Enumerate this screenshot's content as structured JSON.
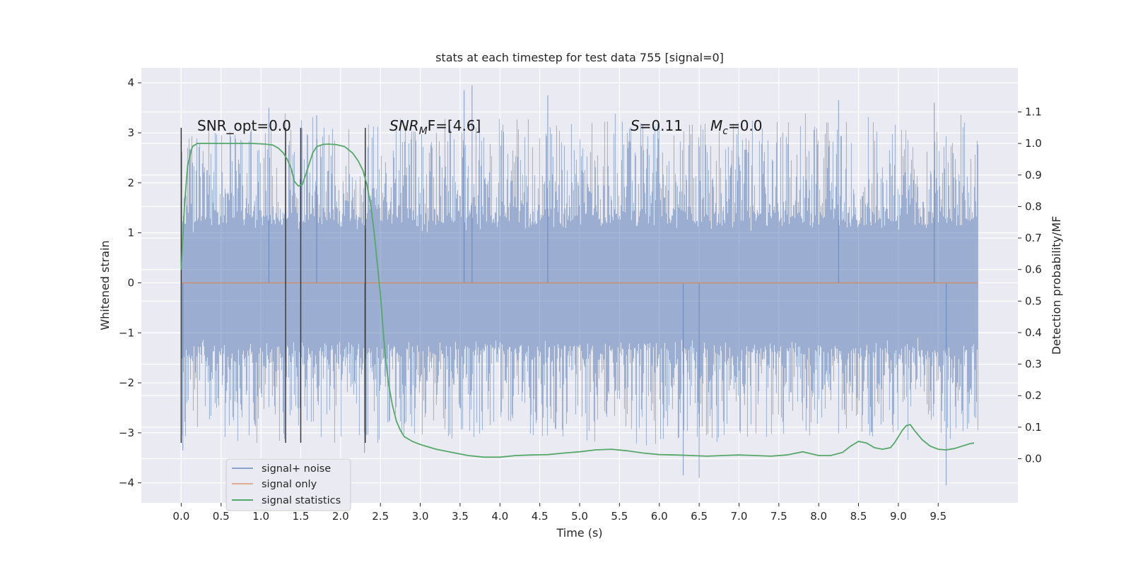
{
  "chart_data": {
    "type": "line",
    "title": "stats at each timestep for test data 755 [signal=0]",
    "xlabel": "Time (s)",
    "ylabel": "Whitened strain",
    "y2label": "Detection probability/MF",
    "xlim": [
      -0.5,
      10.5
    ],
    "ylim": [
      -4.4,
      4.3
    ],
    "y2lim": [
      -0.14,
      1.24
    ],
    "x_ticks": [
      "0.0",
      "0.5",
      "1.0",
      "1.5",
      "2.0",
      "2.5",
      "3.0",
      "3.5",
      "4.0",
      "4.5",
      "5.0",
      "5.5",
      "6.0",
      "6.5",
      "7.0",
      "7.5",
      "8.0",
      "8.5",
      "9.0",
      "9.5"
    ],
    "y_ticks": [
      "4",
      "3",
      "2",
      "1",
      "0",
      "−1",
      "−2",
      "−3",
      "−4"
    ],
    "y2_ticks": [
      "1.1",
      "1.0",
      "0.9",
      "0.8",
      "0.7",
      "0.6",
      "0.5",
      "0.4",
      "0.3",
      "0.2",
      "0.1",
      "0.0"
    ],
    "grid": true,
    "legend_position": "lower-left",
    "colors": {
      "background": "#eaeaf2",
      "grid": "#ffffff",
      "signal_noise": "#4c72b0",
      "signal_only": "#dd8452",
      "statistics": "#55a868",
      "vlines": "#3a3a3a"
    },
    "series": [
      {
        "name": "signal+ noise",
        "style": "dense noise band",
        "x_range": [
          0.0,
          10.0
        ],
        "band_envelope": [
          -1.3,
          1.2
        ],
        "notable_peaks": [
          {
            "x": 1.1,
            "y": 3.5
          },
          {
            "x": 1.7,
            "y": 3.35
          },
          {
            "x": 3.55,
            "y": 3.85
          },
          {
            "x": 3.65,
            "y": 3.95
          },
          {
            "x": 4.6,
            "y": 3.75
          },
          {
            "x": 8.25,
            "y": 3.65
          },
          {
            "x": 9.45,
            "y": 3.6
          },
          {
            "x": 0.02,
            "y": -3.35
          },
          {
            "x": 2.3,
            "y": -3.4
          },
          {
            "x": 6.3,
            "y": -3.85
          },
          {
            "x": 6.5,
            "y": -3.9
          },
          {
            "x": 9.6,
            "y": -4.05
          }
        ]
      },
      {
        "name": "signal only",
        "x": [
          0.0,
          10.0
        ],
        "y": [
          0.0,
          0.0
        ]
      },
      {
        "name": "signal statistics",
        "axis": "right",
        "x": [
          0.0,
          0.04,
          0.08,
          0.14,
          0.2,
          0.3,
          0.5,
          0.7,
          0.9,
          1.05,
          1.15,
          1.22,
          1.28,
          1.33,
          1.38,
          1.42,
          1.47,
          1.52,
          1.56,
          1.6,
          1.65,
          1.7,
          1.78,
          1.85,
          1.95,
          2.05,
          2.15,
          2.22,
          2.28,
          2.33,
          2.38,
          2.42,
          2.46,
          2.5,
          2.53,
          2.56,
          2.6,
          2.65,
          2.7,
          2.75,
          2.8,
          2.9,
          3.0,
          3.2,
          3.4,
          3.6,
          3.8,
          4.0,
          4.2,
          4.4,
          4.6,
          4.8,
          5.0,
          5.2,
          5.4,
          5.6,
          5.8,
          6.0,
          6.2,
          6.4,
          6.6,
          6.8,
          7.0,
          7.2,
          7.4,
          7.6,
          7.8,
          8.0,
          8.15,
          8.3,
          8.4,
          8.5,
          8.6,
          8.7,
          8.8,
          8.9,
          8.95,
          9.0,
          9.05,
          9.1,
          9.15,
          9.2,
          9.3,
          9.4,
          9.5,
          9.6,
          9.7,
          9.8,
          9.9,
          9.95
        ],
        "y": [
          0.6,
          0.8,
          0.93,
          0.99,
          1.0,
          1.0,
          1.0,
          1.0,
          1.0,
          0.998,
          0.995,
          0.985,
          0.97,
          0.95,
          0.92,
          0.88,
          0.865,
          0.87,
          0.9,
          0.93,
          0.97,
          0.99,
          0.997,
          0.998,
          0.996,
          0.99,
          0.97,
          0.945,
          0.915,
          0.87,
          0.8,
          0.72,
          0.62,
          0.52,
          0.42,
          0.33,
          0.24,
          0.17,
          0.12,
          0.09,
          0.07,
          0.055,
          0.045,
          0.03,
          0.02,
          0.01,
          0.005,
          0.005,
          0.01,
          0.012,
          0.013,
          0.018,
          0.022,
          0.028,
          0.03,
          0.025,
          0.018,
          0.013,
          0.012,
          0.01,
          0.008,
          0.01,
          0.012,
          0.01,
          0.008,
          0.012,
          0.022,
          0.01,
          0.01,
          0.02,
          0.04,
          0.055,
          0.05,
          0.035,
          0.03,
          0.035,
          0.05,
          0.07,
          0.09,
          0.105,
          0.108,
          0.09,
          0.06,
          0.04,
          0.03,
          0.028,
          0.032,
          0.04,
          0.048,
          0.05
        ]
      }
    ],
    "vlines_x": [
      0.0,
      1.31,
      1.5,
      2.31
    ],
    "vlines_ymin": -3.2,
    "vlines_ymax": 3.1,
    "annotations": {
      "snr_opt": "SNR_opt=0.0",
      "snr_mf_label": "SNR",
      "snr_mf_sub": "M",
      "snr_mf_rest": "F=[4.6]",
      "s": "S",
      "s_value": "=0.11",
      "mc_label": "M",
      "mc_sub": "c",
      "mc_value": "=0.0"
    }
  }
}
